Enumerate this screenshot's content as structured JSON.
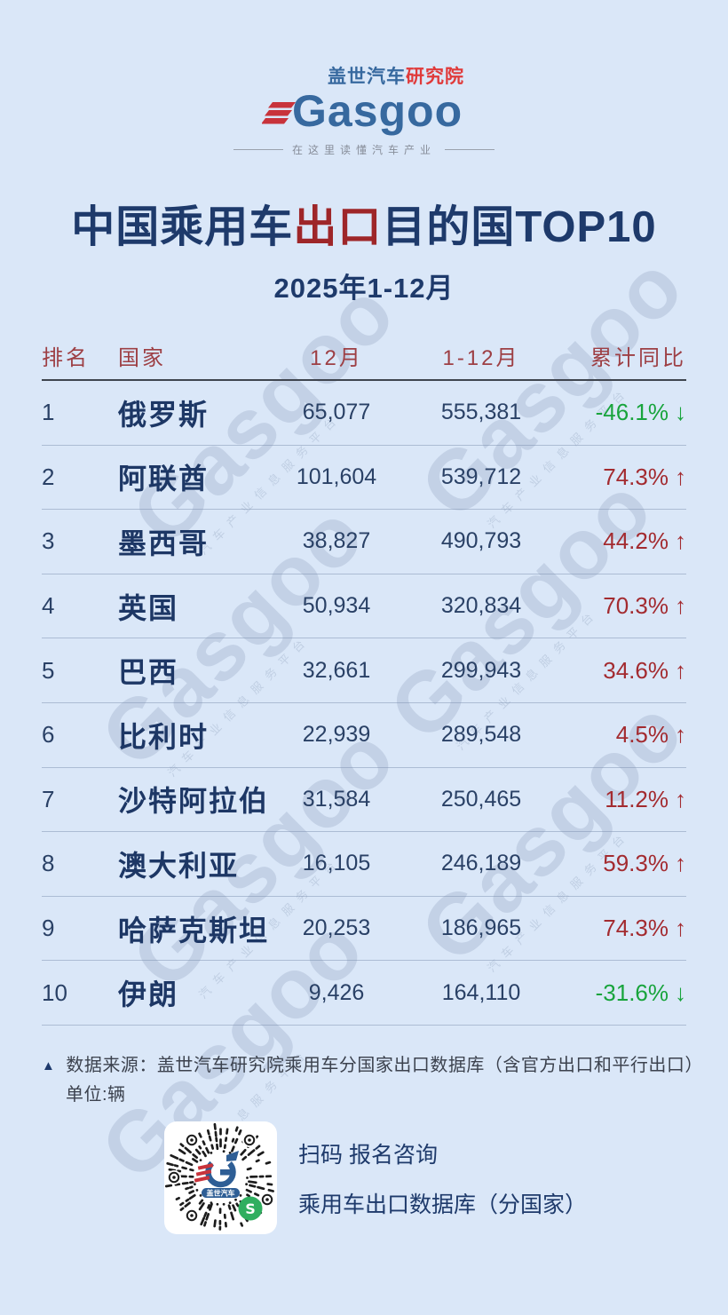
{
  "colors": {
    "background": "#dae7f8",
    "navy": "#1e3a6b",
    "title_highlight_red": "#9e2629",
    "table_header_red": "#9d3f44",
    "value_navy": "#2a4166",
    "yoy_up_red": "#a32b30",
    "yoy_down_green": "#18a43c",
    "logo_blue": "#37699f",
    "logo_red": "#e03a3a",
    "wechat_green": "#2fae5f"
  },
  "logo": {
    "brand_cn_blue": "盖世汽车",
    "brand_cn_red": "研究院",
    "brand_en": "Gasgoo",
    "tagline": "在这里读懂汽车产业"
  },
  "header": {
    "title_prefix": "中国乘用车",
    "title_highlight": "出口",
    "title_suffix": "目的国TOP10",
    "subtitle": "2025年1-12月"
  },
  "table": {
    "columns": [
      "排名",
      "国家",
      "12月",
      "1-12月",
      "累计同比"
    ],
    "rows": [
      {
        "rank": "1",
        "country": "俄罗斯",
        "dec": "65,077",
        "ytd": "555,381",
        "yoy": "-46.1%",
        "arrow": "↓",
        "trend": "down"
      },
      {
        "rank": "2",
        "country": "阿联酋",
        "dec": "101,604",
        "ytd": "539,712",
        "yoy": "74.3%",
        "arrow": "↑",
        "trend": "up"
      },
      {
        "rank": "3",
        "country": "墨西哥",
        "dec": "38,827",
        "ytd": "490,793",
        "yoy": "44.2%",
        "arrow": "↑",
        "trend": "up"
      },
      {
        "rank": "4",
        "country": "英国",
        "dec": "50,934",
        "ytd": "320,834",
        "yoy": "70.3%",
        "arrow": "↑",
        "trend": "up"
      },
      {
        "rank": "5",
        "country": "巴西",
        "dec": "32,661",
        "ytd": "299,943",
        "yoy": "34.6%",
        "arrow": "↑",
        "trend": "up"
      },
      {
        "rank": "6",
        "country": "比利时",
        "dec": "22,939",
        "ytd": "289,548",
        "yoy": "4.5%",
        "arrow": "↑",
        "trend": "up"
      },
      {
        "rank": "7",
        "country": "沙特阿拉伯",
        "dec": "31,584",
        "ytd": "250,465",
        "yoy": "11.2%",
        "arrow": "↑",
        "trend": "up"
      },
      {
        "rank": "8",
        "country": "澳大利亚",
        "dec": "16,105",
        "ytd": "246,189",
        "yoy": "59.3%",
        "arrow": "↑",
        "trend": "up"
      },
      {
        "rank": "9",
        "country": "哈萨克斯坦",
        "dec": "20,253",
        "ytd": "186,965",
        "yoy": "74.3%",
        "arrow": "↑",
        "trend": "up"
      },
      {
        "rank": "10",
        "country": "伊朗",
        "dec": "9,426",
        "ytd": "164,110",
        "yoy": "-31.6%",
        "arrow": "↓",
        "trend": "down"
      }
    ]
  },
  "footnote": {
    "marker": "▲",
    "source": "数据来源：盖世汽车研究院乘用车分国家出口数据库（含官方出口和平行出口）",
    "unit": "单位:辆"
  },
  "qr": {
    "line1": "扫码 报名咨询",
    "line2": "乘用车出口数据库（分国家）",
    "center_label": "盖世汽车"
  },
  "watermark": {
    "text_en": "Gasgoo",
    "text_cn": "汽车产业信息服务平台"
  },
  "chart_data": {
    "type": "table",
    "title": "中国乘用车出口目的国TOP10",
    "subtitle": "2025年1-12月",
    "unit": "辆",
    "columns": [
      "排名",
      "国家",
      "12月",
      "1-12月",
      "累计同比(%)"
    ],
    "rows": [
      [
        1,
        "俄罗斯",
        65077,
        555381,
        -46.1
      ],
      [
        2,
        "阿联酋",
        101604,
        539712,
        74.3
      ],
      [
        3,
        "墨西哥",
        38827,
        490793,
        44.2
      ],
      [
        4,
        "英国",
        50934,
        320834,
        70.3
      ],
      [
        5,
        "巴西",
        32661,
        299943,
        34.6
      ],
      [
        6,
        "比利时",
        22939,
        289548,
        4.5
      ],
      [
        7,
        "沙特阿拉伯",
        31584,
        250465,
        11.2
      ],
      [
        8,
        "澳大利亚",
        16105,
        246189,
        59.3
      ],
      [
        9,
        "哈萨克斯坦",
        20253,
        186965,
        74.3
      ],
      [
        10,
        "伊朗",
        9426,
        164110,
        -31.6
      ]
    ]
  }
}
